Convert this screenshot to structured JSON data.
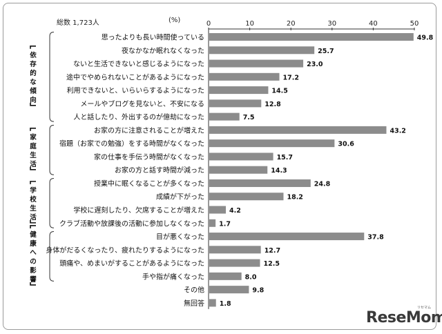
{
  "header": {
    "total_label": "総数 1,723人",
    "unit": "(%)"
  },
  "logo": {
    "text": "ReseMom",
    "sub": "リセマム"
  },
  "chart_data": {
    "type": "bar",
    "orientation": "horizontal",
    "xlim": [
      0,
      50
    ],
    "xticks": [
      0,
      10,
      20,
      30,
      40,
      50
    ],
    "bar_color": "#8c8c8c",
    "groups": [
      {
        "label": "依存的な傾向",
        "start": 0,
        "end": 6
      },
      {
        "label": "家庭生活",
        "start": 7,
        "end": 10
      },
      {
        "label": "学校生活",
        "start": 11,
        "end": 14
      },
      {
        "label": "健康への影響",
        "start": 15,
        "end": 18
      }
    ],
    "categories": [
      "思ったよりも長い時間使っている",
      "夜なかなか眠れなくなった",
      "ないと生活できないと感じるようになった",
      "途中でやめられないことがあるようになった",
      "利用できないと、いらいらするようになった",
      "メールやブログを見ないと、不安になる",
      "人と話したり、外出するのが億劫になった",
      "お家の方に注意されることが増えた",
      "宿題（お家での勉強）をする時間がなくなった",
      "家の仕事を手伝う時間がなくなった",
      "お家の方と話す時間が減った",
      "授業中に眠くなることが多くなった",
      "成績が下がった",
      "学校に遅刻したり、欠席することが増えた",
      "クラブ活動や放課後の活動に参加しなくなった",
      "目が悪くなった",
      "身体がだるくなったり、疲れたりするようになった",
      "頭痛や、めまいがすることがあるようになった",
      "手や指が痛くなった",
      "その他",
      "無回答"
    ],
    "values": [
      49.8,
      25.7,
      23.0,
      17.2,
      14.5,
      12.8,
      7.5,
      43.2,
      30.6,
      15.7,
      14.3,
      24.8,
      18.2,
      4.2,
      1.7,
      37.8,
      12.7,
      12.5,
      8.0,
      9.8,
      1.8
    ],
    "value_labels": [
      "49.8",
      "25.7",
      "23.0",
      "17.2",
      "14.5",
      "12.8",
      "7.5",
      "43.2",
      "30.6",
      "15.7",
      "14.3",
      "24.8",
      "18.2",
      "4.2",
      "1.7",
      "37.8",
      "12.7",
      "12.5",
      "8.0",
      "9.8",
      "1.8"
    ]
  }
}
